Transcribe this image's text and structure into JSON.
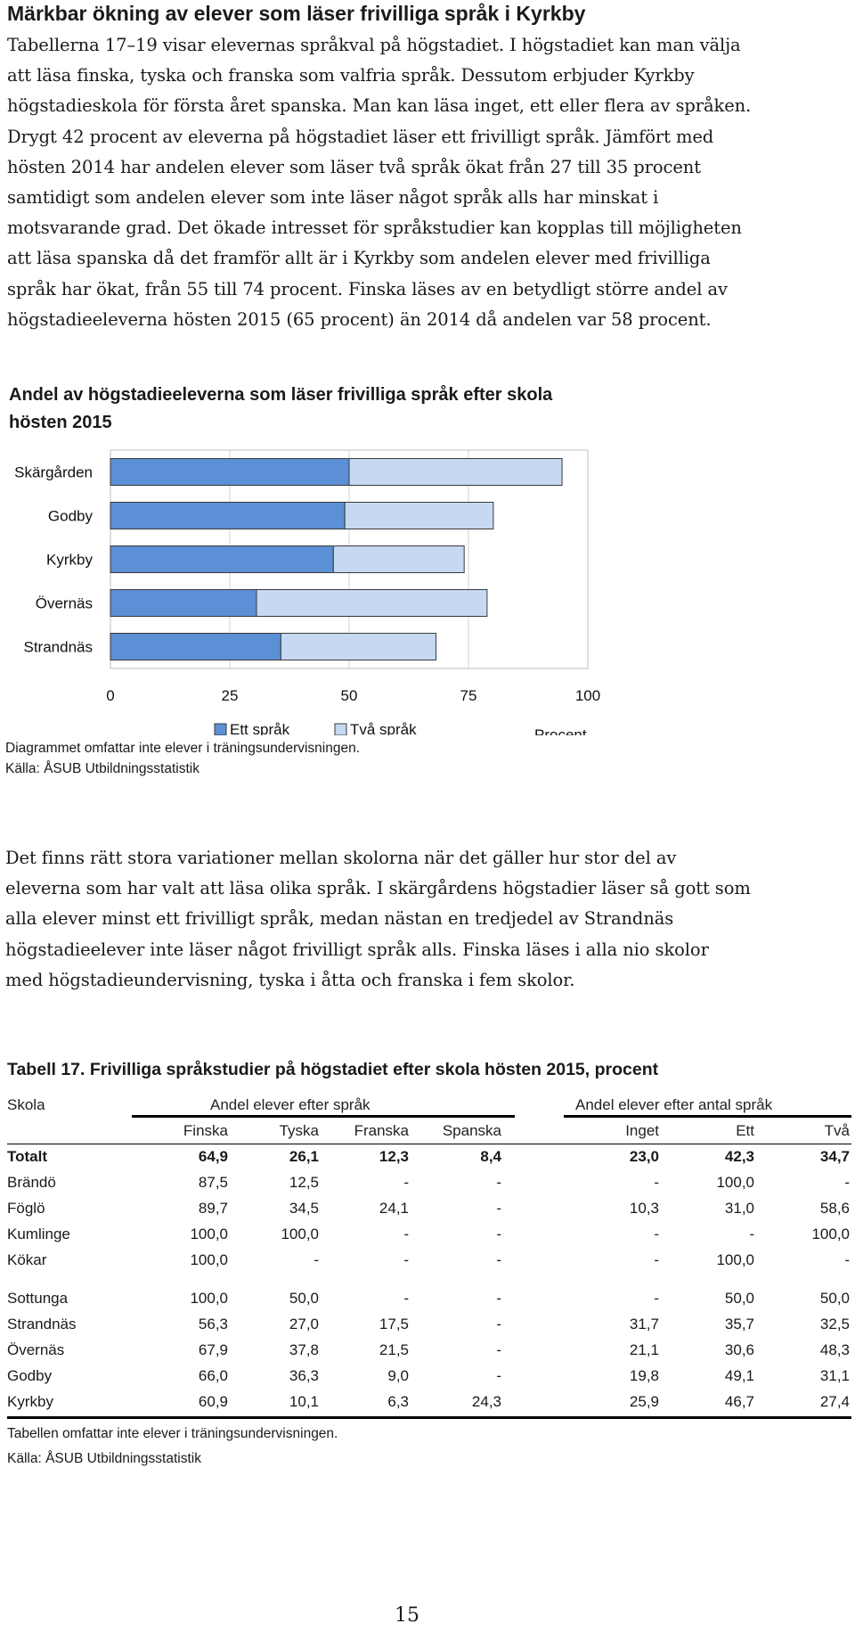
{
  "heading": "Märkbar ökning av elever som läser frivilliga språk i Kyrkby",
  "intro_lines": [
    "Tabellerna 17–19 visar elevernas språkval på högstadiet. I högstadiet kan man välja",
    "att läsa finska, tyska och franska som valfria språk. Dessutom erbjuder Kyrkby",
    "högstadieskola för första året spanska. Man kan läsa inget, ett eller flera av språken.",
    "Drygt 42 procent av eleverna på högstadiet läser ett frivilligt språk. Jämfört med",
    "hösten 2014 har andelen elever som läser två språk ökat från 27 till 35 procent",
    "samtidigt som andelen elever som inte läser något språk alls har minskat i",
    "motsvarande grad. Det ökade intresset för språkstudier kan kopplas till möjligheten",
    "att läsa spanska då det framför allt är i Kyrkby som andelen elever med frivilliga",
    "språk har ökat, från 55 till 74 procent. Finska läses av en betydligt större andel av",
    "högstadieeleverna hösten 2015 (65 procent) än 2014 då andelen var 58 procent."
  ],
  "chart": {
    "title_lines": [
      "Andel av högstadieeleverna som läser frivilliga språk efter skola",
      "hösten 2015"
    ],
    "note": "Diagrammet omfattar inte elever i träningsundervisningen.",
    "source": "Källa: ÅSUB Utbildningsstatistik"
  },
  "chart_data": {
    "type": "bar",
    "orientation": "horizontal",
    "stacked": true,
    "categories": [
      "Skärgården",
      "Godby",
      "Kyrkby",
      "Övernäs",
      "Strandnäs"
    ],
    "series": [
      {
        "name": "Ett språk",
        "values": [
          50,
          49.1,
          46.7,
          30.6,
          35.7
        ],
        "color": "#5b8fd6"
      },
      {
        "name": "Två språk",
        "values": [
          44.6,
          31.1,
          27.4,
          48.3,
          32.5
        ],
        "color": "#c6d9f1"
      }
    ],
    "xticks": [
      "0",
      "25",
      "50",
      "75",
      "100"
    ],
    "xlim": [
      0,
      100
    ],
    "xlabel": "Procent",
    "grid": true,
    "legend": "bottom"
  },
  "body2_lines": [
    "Det finns rätt stora variationer mellan skolorna när det gäller hur stor del av",
    "eleverna som har valt att läsa olika språk. I skärgårdens högstadier läser så gott som",
    "alla elever minst ett frivilligt språk, medan nästan en tredjedel av Strandnäs",
    "högstadieelever inte läser något frivilligt språk alls. Finska läses i alla nio skolor",
    "med högstadieundervisning, tyska i åtta och franska i fem skolor."
  ],
  "table": {
    "title": "Tabell 17. Frivilliga språkstudier på högstadiet efter skola hösten 2015, procent",
    "col_school": "Skola",
    "group1": "Andel elever efter språk",
    "group2": "Andel elever efter antal språk",
    "columns": [
      "Finska",
      "Tyska",
      "Franska",
      "Spanska",
      "Inget",
      "Ett",
      "Två"
    ],
    "rows": [
      {
        "school": "Totalt",
        "values": [
          "64,9",
          "26,1",
          "12,3",
          "8,4",
          "23,0",
          "42,3",
          "34,7"
        ]
      },
      {
        "school": "Brändö",
        "values": [
          "87,5",
          "12,5",
          "-",
          "-",
          "-",
          "100,0",
          "-"
        ]
      },
      {
        "school": "Föglö",
        "values": [
          "89,7",
          "34,5",
          "24,1",
          "-",
          "10,3",
          "31,0",
          "58,6"
        ]
      },
      {
        "school": "Kumlinge",
        "values": [
          "100,0",
          "100,0",
          "-",
          "-",
          "-",
          "-",
          "100,0"
        ]
      },
      {
        "school": "Kökar",
        "values": [
          "100,0",
          "-",
          "-",
          "-",
          "-",
          "100,0",
          "-"
        ]
      },
      {
        "school": "Sottunga",
        "values": [
          "100,0",
          "50,0",
          "-",
          "-",
          "-",
          "50,0",
          "50,0"
        ]
      },
      {
        "school": "Strandnäs",
        "values": [
          "56,3",
          "27,0",
          "17,5",
          "-",
          "31,7",
          "35,7",
          "32,5"
        ]
      },
      {
        "school": "Övernäs",
        "values": [
          "67,9",
          "37,8",
          "21,5",
          "-",
          "21,1",
          "30,6",
          "48,3"
        ]
      },
      {
        "school": "Godby",
        "values": [
          "66,0",
          "36,3",
          "9,0",
          "-",
          "19,8",
          "49,1",
          "31,1"
        ]
      },
      {
        "school": "Kyrkby",
        "values": [
          "60,9",
          "10,1",
          "6,3",
          "24,3",
          "25,9",
          "46,7",
          "27,4"
        ]
      }
    ],
    "note": "Tabellen omfattar inte elever i träningsundervisningen.",
    "source": "Källa: ÅSUB Utbildningsstatistik"
  },
  "page_number": "15"
}
